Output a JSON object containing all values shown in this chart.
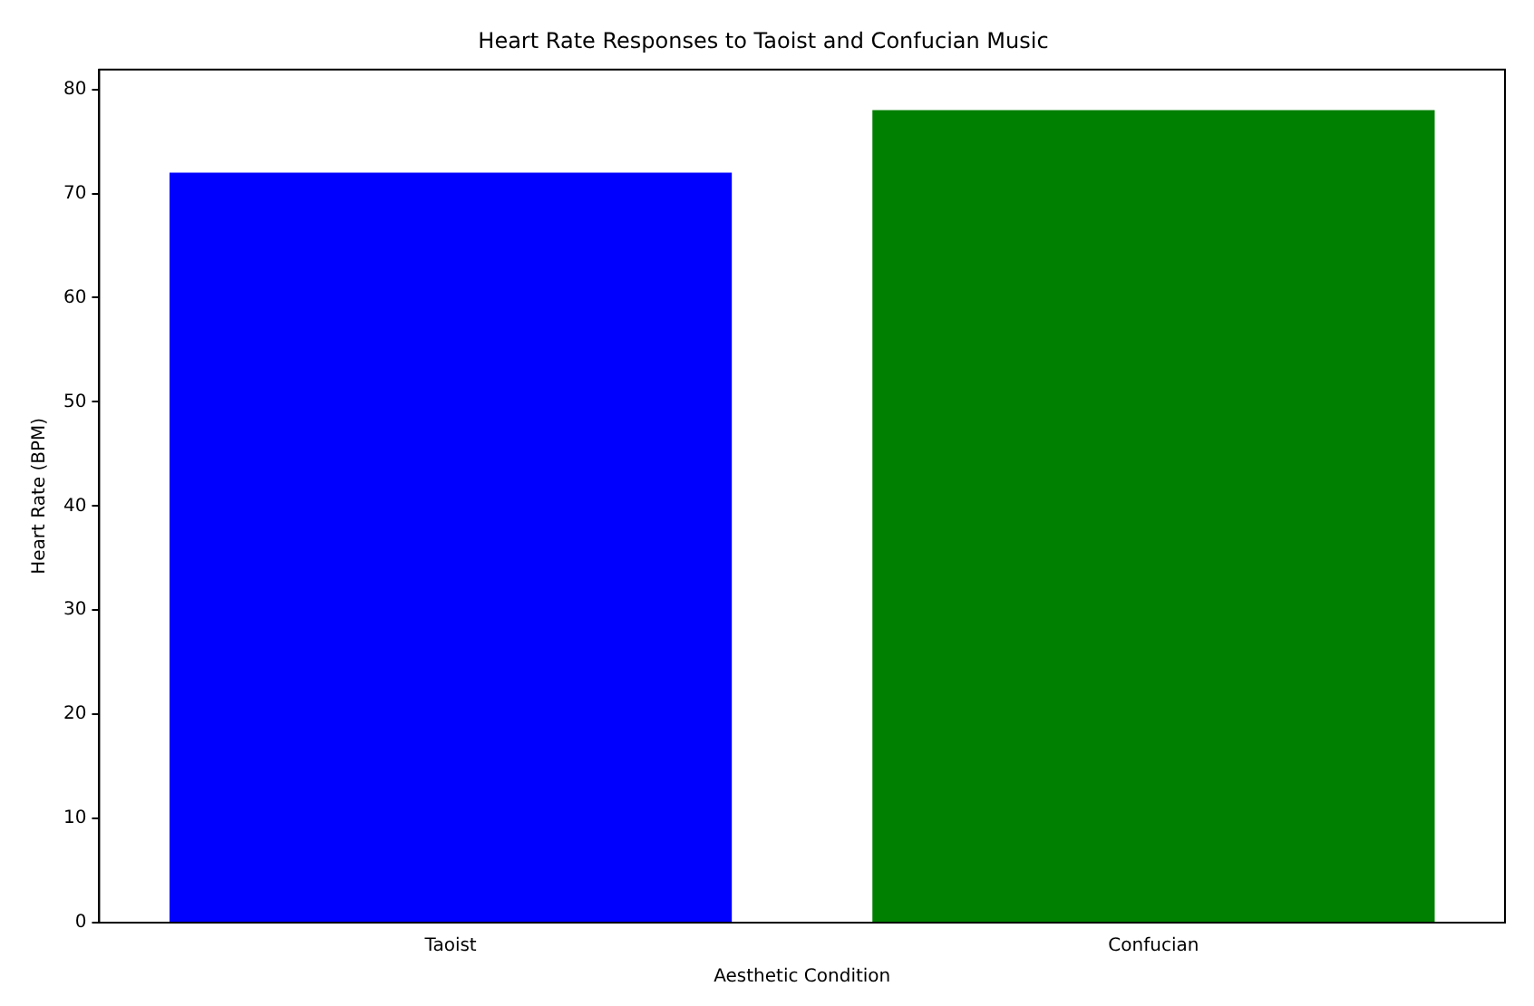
{
  "chart_data": {
    "type": "bar",
    "title": "Heart Rate Responses to Taoist and Confucian Music",
    "xlabel": "Aesthetic Condition",
    "ylabel": "Heart Rate (BPM)",
    "categories": [
      "Taoist",
      "Confucian"
    ],
    "values": [
      72,
      78
    ],
    "colors": [
      "#0000ff",
      "#008000"
    ],
    "ylim": [
      0,
      81.9
    ],
    "yticks": [
      0,
      10,
      20,
      30,
      40,
      50,
      60,
      70,
      80
    ],
    "grid": false,
    "legend": false
  }
}
